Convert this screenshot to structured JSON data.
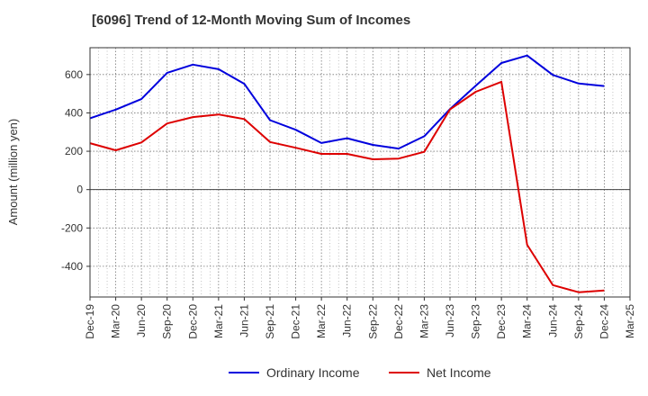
{
  "title": "[6096]  Trend of 12-Month Moving Sum of Incomes",
  "chart_data": {
    "type": "line",
    "title": "[6096]  Trend of 12-Month Moving Sum of Incomes",
    "xlabel": "",
    "ylabel": "Amount (million yen)",
    "categories": [
      "Dec-19",
      "Mar-20",
      "Jun-20",
      "Sep-20",
      "Dec-20",
      "Mar-21",
      "Jun-21",
      "Sep-21",
      "Dec-21",
      "Mar-22",
      "Jun-22",
      "Sep-22",
      "Dec-22",
      "Mar-23",
      "Jun-23",
      "Sep-23",
      "Dec-23",
      "Mar-24",
      "Jun-24",
      "Sep-24",
      "Dec-24",
      "Mar-25"
    ],
    "ylim": [
      -560,
      740
    ],
    "yticks": [
      -400,
      -200,
      0,
      200,
      400,
      600
    ],
    "ytick_labels": [
      "-400",
      "-200",
      "0",
      "200",
      "400",
      "600"
    ],
    "grid": true,
    "legend_position": "bottom",
    "series": [
      {
        "name": "Ordinary Income",
        "color": "#0000dd",
        "values": [
          372,
          417,
          472,
          609,
          652,
          628,
          552,
          362,
          312,
          243,
          268,
          233,
          214,
          278,
          420,
          542,
          660,
          699,
          598,
          553,
          540,
          null
        ]
      },
      {
        "name": "Net Income",
        "color": "#dd0000",
        "values": [
          242,
          205,
          246,
          345,
          378,
          392,
          368,
          248,
          218,
          186,
          186,
          158,
          162,
          197,
          418,
          510,
          562,
          -288,
          -498,
          -535,
          -526,
          null
        ]
      }
    ]
  }
}
